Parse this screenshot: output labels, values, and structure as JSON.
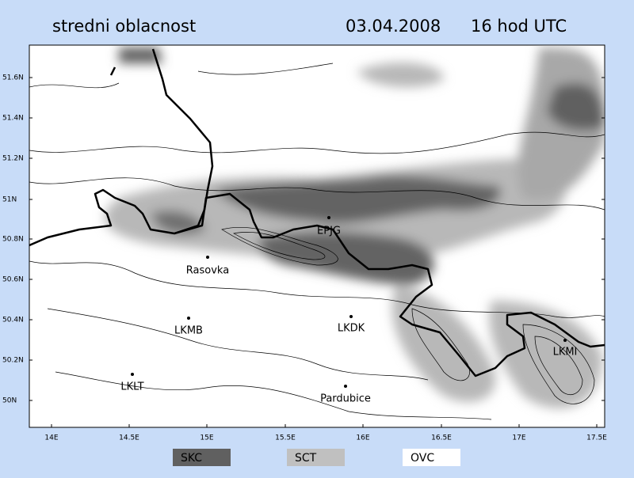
{
  "header": {
    "title": "stredni oblacnost",
    "date": "03.04.2008",
    "time": "16 hod UTC"
  },
  "map": {
    "lat_labels": [
      "51.6N",
      "51.4N",
      "51.2N",
      "51N",
      "50.8N",
      "50.6N",
      "50.4N",
      "50.2N",
      "50N"
    ],
    "lon_labels": [
      "14E",
      "14.5E",
      "15E",
      "15.5E",
      "16E",
      "16.5E",
      "17E",
      "17.5E"
    ],
    "stations": [
      {
        "label": "EPJG"
      },
      {
        "label": "Rasovka"
      },
      {
        "label": "LKMB"
      },
      {
        "label": "LKDK"
      },
      {
        "label": "LKLT"
      },
      {
        "label": "Pardubice"
      },
      {
        "label": "LKMI"
      }
    ]
  },
  "legend": [
    {
      "label": "SKC",
      "color": "#606060"
    },
    {
      "label": "SCT",
      "color": "#c0c0c0"
    },
    {
      "label": "OVC",
      "color": "#ffffff"
    }
  ]
}
